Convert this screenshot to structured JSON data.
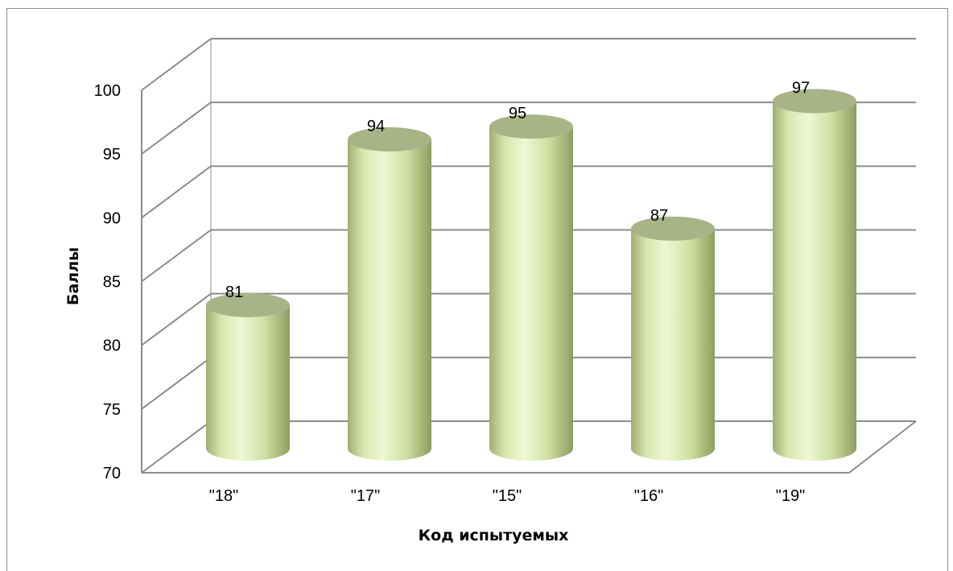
{
  "chart_data": {
    "type": "bar",
    "style": "3d-cylinder",
    "categories": [
      "\"18\"",
      "\"17\"",
      "\"15\"",
      "\"16\"",
      "\"19\""
    ],
    "values": [
      81,
      94,
      95,
      87,
      97
    ],
    "data_labels": [
      "81",
      "94",
      "95",
      "87",
      "97"
    ],
    "title": "",
    "xlabel": "Код испытуемых",
    "ylabel": "Баллы",
    "ylim": [
      70,
      100
    ],
    "yticks": [
      "70",
      "75",
      "80",
      "85",
      "90",
      "95",
      "100"
    ],
    "grid": true,
    "legend": "none",
    "colors": {
      "bar_light": "#e9f5c9",
      "bar_mid": "#cfe0a4",
      "bar_dark": "#8f9f63",
      "bar_top": "#a8b488",
      "grid": "#8c8c8c"
    }
  }
}
